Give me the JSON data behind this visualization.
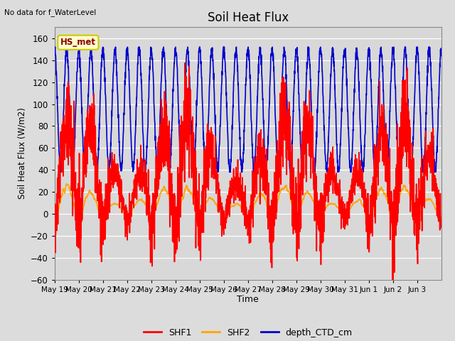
{
  "title": "Soil Heat Flux",
  "xlabel": "Time",
  "ylabel": "Soil Heat Flux (W/m2)",
  "top_left_text": "No data for f_WaterLevel",
  "annotation_box": "HS_met",
  "ylim": [
    -60,
    170
  ],
  "yticks": [
    -60,
    -40,
    -20,
    0,
    20,
    40,
    60,
    80,
    100,
    120,
    140,
    160
  ],
  "xtick_labels": [
    "May 19",
    "May 20",
    "May 21",
    "May 22",
    "May 23",
    "May 24",
    "May 25",
    "May 26",
    "May 27",
    "May 28",
    "May 29",
    "May 30",
    "May 31",
    "Jun 1",
    "Jun 2",
    "Jun 3"
  ],
  "legend_entries": [
    "SHF1",
    "SHF2",
    "depth_CTD_cm"
  ],
  "shf1_color": "#ff0000",
  "shf2_color": "#ffa500",
  "depth_color": "#0000cc",
  "line_width": 1.2,
  "bg_color": "#dcdcdc",
  "plot_bg_color": "#d8d8d8",
  "grid_color": "#ffffff",
  "n_days": 16,
  "pts_per_day": 144
}
